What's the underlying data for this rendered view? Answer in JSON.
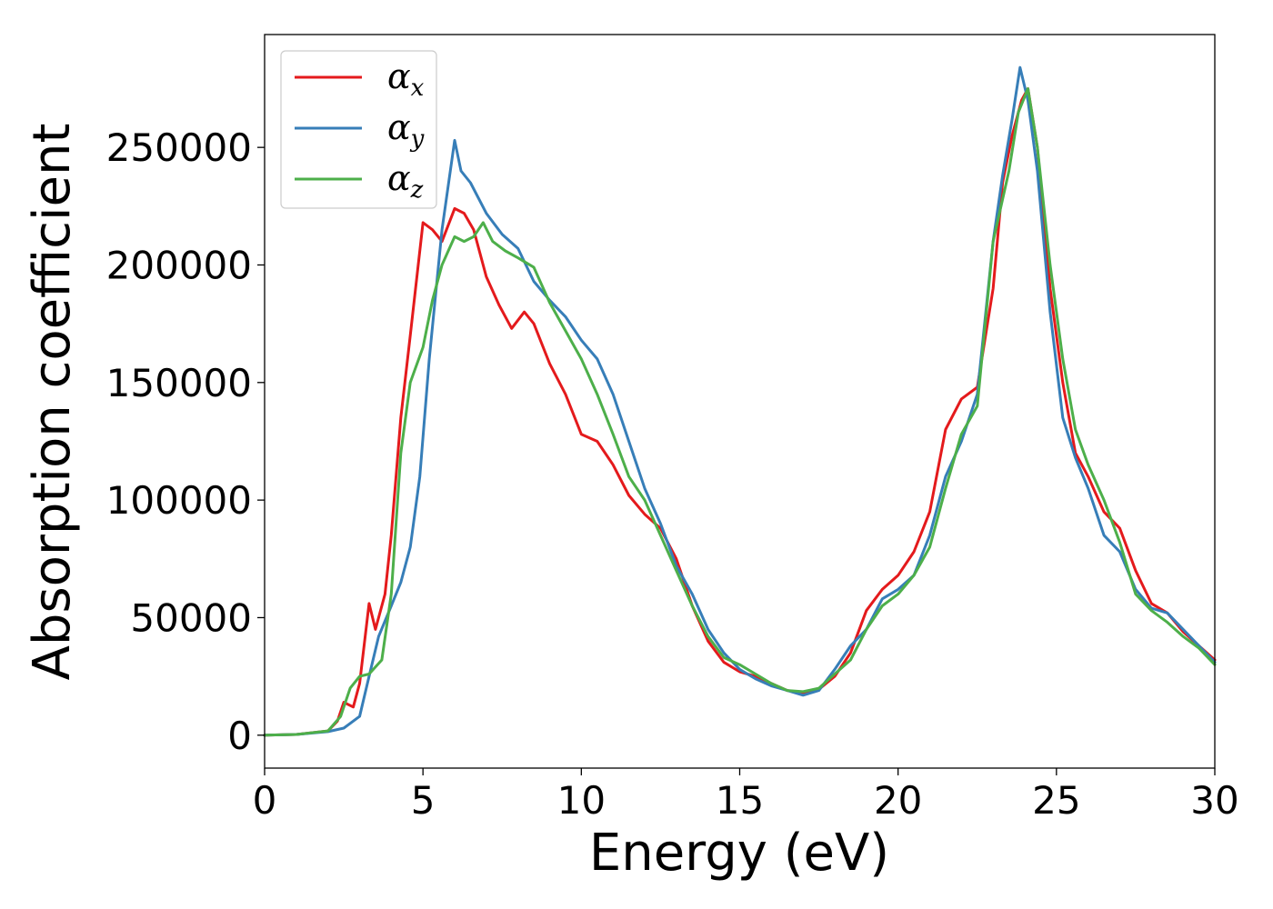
{
  "chart_data": {
    "type": "line",
    "xlabel": "Energy (eV)",
    "ylabel": "Absorption coefficient",
    "xlim": [
      0,
      30
    ],
    "ylim": [
      -14000,
      298000
    ],
    "xticks": [
      0,
      5,
      10,
      15,
      20,
      25,
      30
    ],
    "xtick_labels": [
      "0",
      "5",
      "10",
      "15",
      "20",
      "25",
      "30"
    ],
    "yticks": [
      0,
      50000,
      100000,
      150000,
      200000,
      250000
    ],
    "ytick_labels": [
      "0",
      "50000",
      "100000",
      "150000",
      "200000",
      "250000"
    ],
    "grid": false,
    "legend_position": "top-left",
    "series": [
      {
        "name": "α",
        "subscript": "x",
        "color": "#e41a1c",
        "x": [
          0,
          1,
          2,
          2.3,
          2.5,
          2.8,
          3.0,
          3.3,
          3.5,
          3.8,
          4.0,
          4.3,
          4.6,
          5.0,
          5.3,
          5.6,
          6.0,
          6.3,
          6.6,
          7.0,
          7.4,
          7.8,
          8.2,
          8.5,
          9.0,
          9.5,
          10.0,
          10.5,
          11.0,
          11.5,
          12.0,
          12.5,
          13.0,
          13.5,
          14.0,
          14.5,
          15.0,
          15.5,
          16.0,
          16.5,
          17.0,
          17.5,
          18.0,
          18.5,
          19.0,
          19.5,
          20.0,
          20.5,
          21.0,
          21.5,
          22.0,
          22.5,
          23.0,
          23.3,
          23.6,
          23.9,
          24.1,
          24.4,
          24.8,
          25.2,
          25.6,
          26.0,
          26.5,
          27.0,
          27.5,
          28.0,
          28.5,
          29.0,
          29.5,
          30.0
        ],
        "y": [
          0,
          300,
          1800,
          6000,
          14000,
          12000,
          22000,
          56000,
          45000,
          60000,
          85000,
          135000,
          170000,
          218000,
          215000,
          210000,
          224000,
          222000,
          215000,
          195000,
          183000,
          173000,
          180000,
          175000,
          158000,
          145000,
          128000,
          125000,
          115000,
          102000,
          94000,
          88000,
          75000,
          55000,
          40000,
          31000,
          27000,
          25000,
          22000,
          19000,
          18000,
          19500,
          25000,
          35000,
          53000,
          62000,
          68000,
          78000,
          95000,
          130000,
          143000,
          148000,
          190000,
          235000,
          255000,
          270000,
          275000,
          250000,
          190000,
          150000,
          120000,
          110000,
          95000,
          88000,
          70000,
          56000,
          52000,
          44000,
          38000,
          32000
        ]
      },
      {
        "name": "α",
        "subscript": "y",
        "color": "#377eb8",
        "x": [
          0,
          1,
          2,
          2.5,
          3.0,
          3.3,
          3.6,
          4.0,
          4.3,
          4.6,
          4.9,
          5.2,
          5.6,
          6.0,
          6.2,
          6.5,
          7.0,
          7.5,
          8.0,
          8.5,
          9.0,
          9.5,
          10.0,
          10.5,
          11.0,
          11.5,
          12.0,
          12.5,
          13.0,
          13.5,
          14.0,
          14.5,
          15.0,
          15.5,
          16.0,
          16.5,
          17.0,
          17.5,
          18.0,
          18.5,
          19.0,
          19.5,
          20.0,
          20.5,
          21.0,
          21.5,
          22.0,
          22.5,
          23.0,
          23.3,
          23.6,
          23.85,
          24.1,
          24.4,
          24.8,
          25.2,
          25.6,
          26.0,
          26.5,
          27.0,
          27.5,
          28.0,
          28.5,
          29.0,
          29.5,
          30.0
        ],
        "y": [
          0,
          300,
          1500,
          3000,
          8000,
          25000,
          42000,
          55000,
          65000,
          80000,
          110000,
          160000,
          215000,
          253000,
          240000,
          235000,
          222000,
          213000,
          207000,
          193000,
          185000,
          178000,
          168000,
          160000,
          145000,
          125000,
          105000,
          90000,
          72000,
          60000,
          45000,
          35000,
          28000,
          24000,
          21000,
          19000,
          17000,
          19000,
          28000,
          38000,
          45000,
          58000,
          62000,
          68000,
          85000,
          110000,
          125000,
          145000,
          210000,
          238000,
          262000,
          284000,
          270000,
          240000,
          180000,
          135000,
          118000,
          105000,
          85000,
          78000,
          62000,
          54000,
          52000,
          45000,
          38000,
          31000
        ]
      },
      {
        "name": "α",
        "subscript": "z",
        "color": "#4daf4a",
        "x": [
          0,
          1,
          2,
          2.4,
          2.7,
          3.0,
          3.3,
          3.7,
          4.0,
          4.3,
          4.6,
          5.0,
          5.3,
          5.6,
          6.0,
          6.3,
          6.6,
          6.9,
          7.2,
          7.6,
          8.0,
          8.5,
          9.0,
          9.5,
          10.0,
          10.5,
          11.0,
          11.5,
          12.0,
          12.5,
          13.0,
          13.5,
          14.0,
          14.5,
          15.0,
          15.5,
          16.0,
          16.5,
          17.0,
          17.5,
          18.0,
          18.5,
          19.0,
          19.5,
          20.0,
          20.5,
          21.0,
          21.5,
          22.0,
          22.5,
          23.0,
          23.5,
          23.8,
          24.1,
          24.4,
          24.8,
          25.2,
          25.6,
          26.0,
          26.5,
          27.0,
          27.5,
          28.0,
          28.5,
          29.0,
          29.5,
          30.0
        ],
        "y": [
          0,
          300,
          1800,
          8000,
          20000,
          25000,
          26000,
          32000,
          60000,
          120000,
          150000,
          165000,
          185000,
          200000,
          212000,
          210000,
          212000,
          218000,
          210000,
          206000,
          203000,
          199000,
          184000,
          172000,
          160000,
          145000,
          128000,
          110000,
          100000,
          85000,
          70000,
          55000,
          42000,
          33000,
          30000,
          26000,
          22000,
          19000,
          18500,
          20000,
          26000,
          32000,
          45000,
          55000,
          60000,
          68000,
          80000,
          105000,
          128000,
          140000,
          210000,
          240000,
          265000,
          275000,
          250000,
          200000,
          160000,
          130000,
          115000,
          100000,
          82000,
          60000,
          53000,
          48000,
          42000,
          37000,
          30000
        ]
      }
    ]
  }
}
